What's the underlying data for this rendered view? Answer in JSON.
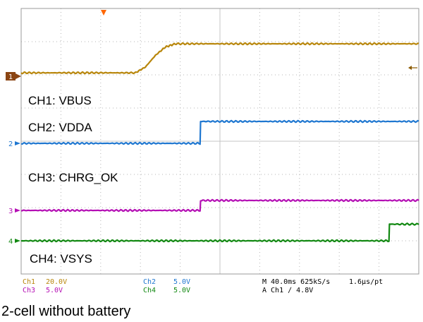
{
  "caption": "2-cell without battery",
  "chart_data": {
    "type": "line",
    "title": "",
    "xlabel": "",
    "ylabel": "",
    "xlim": [
      0,
      400
    ],
    "x_unit": "ms",
    "grid": "dotted",
    "series": [
      {
        "name": "CH1: VBUS",
        "channel": "Ch1",
        "color": "#b8860b",
        "x": [
          0,
          115,
          125,
          135,
          145,
          155,
          400
        ],
        "y": [
          -17.5,
          -17.5,
          -14,
          -7,
          -2,
          0,
          0
        ]
      },
      {
        "name": "CH2: VDDA",
        "channel": "Ch2",
        "color": "#1f77d0",
        "x": [
          0,
          180,
          180.5,
          400
        ],
        "y": [
          0,
          0,
          3.3,
          3.3
        ]
      },
      {
        "name": "CH3: CHRG_OK",
        "channel": "Ch3",
        "color": "#b40fb4",
        "x": [
          0,
          180,
          180.5,
          400
        ],
        "y": [
          0,
          0,
          1.5,
          1.5
        ]
      },
      {
        "name": "CH4: VSYS",
        "channel": "Ch4",
        "color": "#118811",
        "x": [
          0,
          370,
          370.5,
          400
        ],
        "y": [
          0,
          0,
          2.5,
          2.5
        ]
      }
    ],
    "channel_markers": [
      "1",
      "2",
      "3",
      "4"
    ],
    "annotations": [
      "CH1: VBUS",
      "CH2: VDDA",
      "CH3: CHRG_OK",
      "CH4: VSYS"
    ]
  },
  "readout": {
    "ch1": "Ch1",
    "ch1_scale": "20.0V",
    "ch3": "Ch3",
    "ch3_scale": "5.0V",
    "ch2": "Ch2",
    "ch2_scale": "5.0V",
    "ch4": "Ch4",
    "ch4_scale": "5.0V",
    "timebase": "M 40.0ms 625kS/s",
    "trigger": "A  Ch1  ∕  4.8V",
    "sample": "1.6μs/pt"
  },
  "colors": {
    "ch1": "#b8860b",
    "ch2": "#1f77d0",
    "ch3": "#b40fb4",
    "ch4": "#118811",
    "trigger_marker": "#ff6600",
    "frame": "#9a9a9a"
  }
}
